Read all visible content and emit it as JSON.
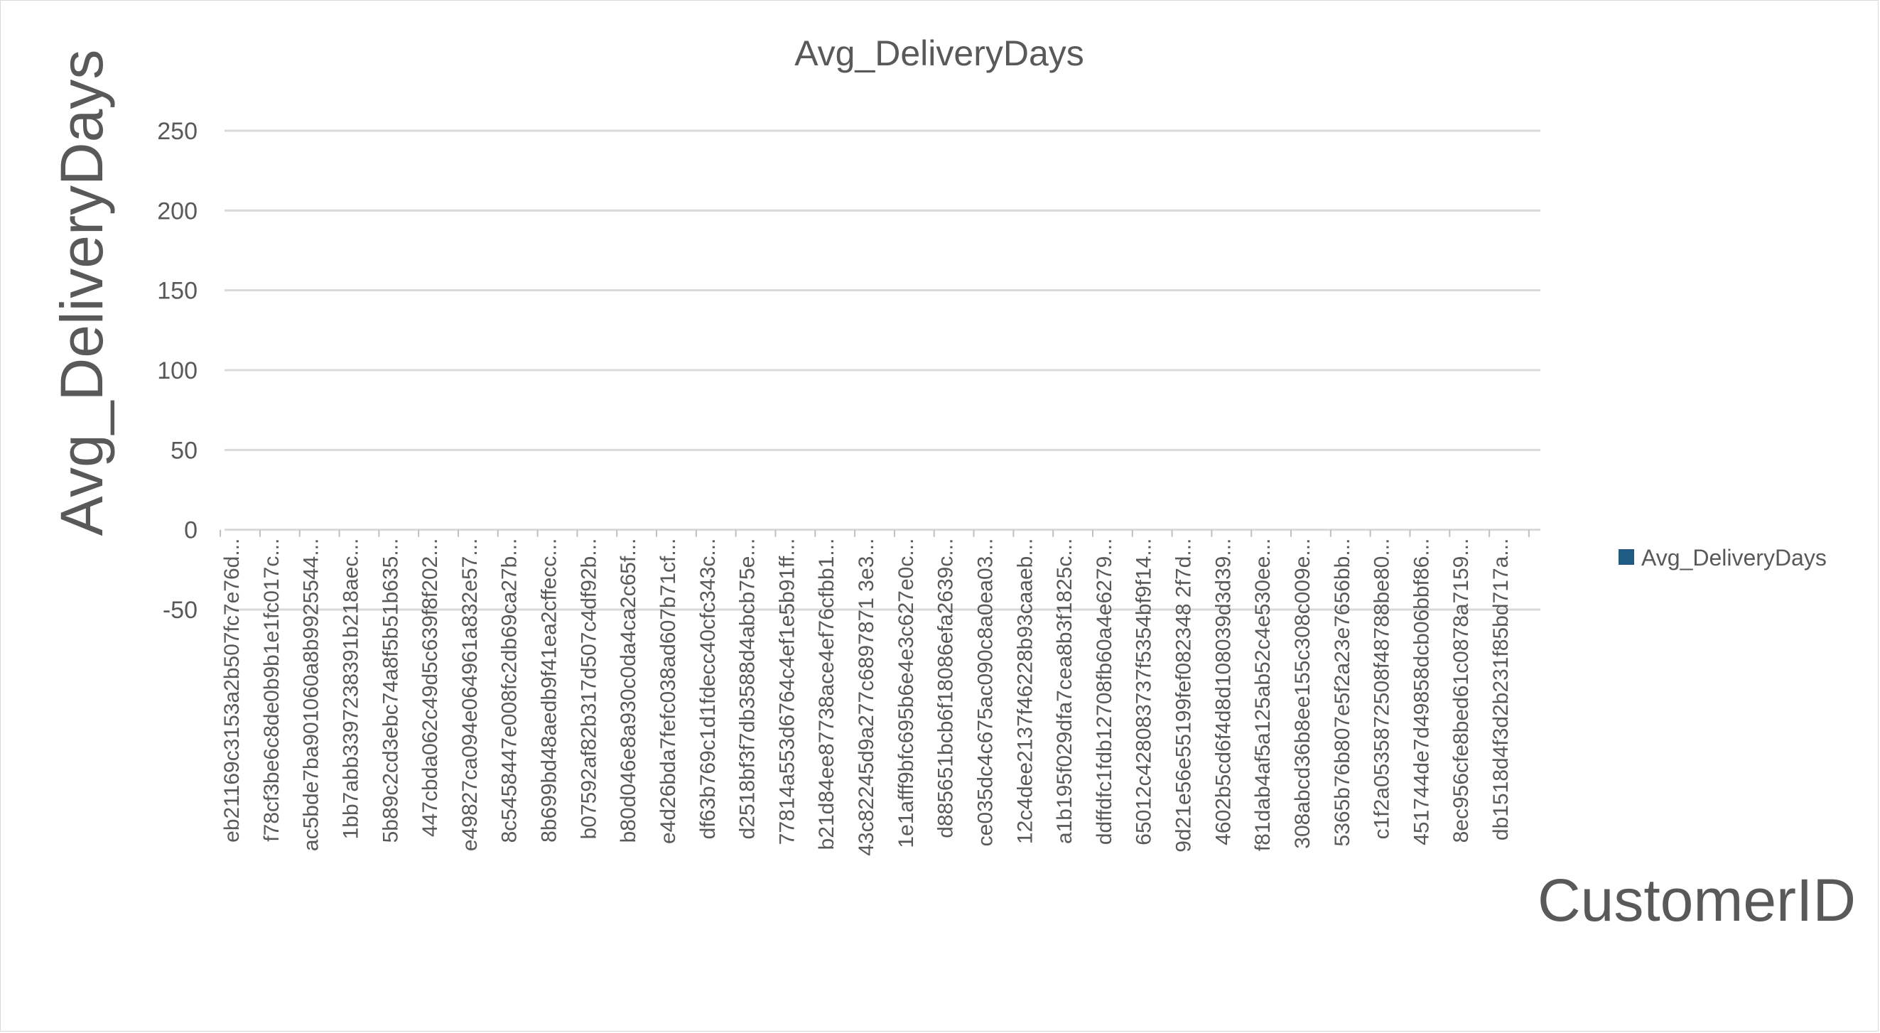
{
  "chart_data": {
    "type": "bar",
    "title": "Avg_DeliveryDays",
    "xlabel": "CustomerID",
    "ylabel": "Avg_DeliveryDays",
    "ylim": [
      -50,
      250
    ],
    "y_ticks": [
      250,
      200,
      150,
      100,
      50,
      0,
      -50
    ],
    "grid": true,
    "legend_position": "right",
    "colors": {
      "series": "#1f5b82",
      "text": "#595959",
      "grid": "#d9d9d9"
    },
    "categories": [
      "eb21169c3153a2b507fc7e76d...",
      "f78cf3be6c8de0b9b1e1fc017c...",
      "ac5bde7ba901060a8b9925544...",
      "1bb7abb3397238391b218aec...",
      "5b89c2cd3ebc74a8f5b51b635...",
      "447cbda062c49d5c639f8f202...",
      "e49827ca094e064961a832e57...",
      "8c5458447e008fc2db69ca27b...",
      "8b699bd48aedb9f41ea2cffecc...",
      "b07592af82b317d507c4df92b...",
      "b80d046e8a930c0da4ca2c65f...",
      "e4d26bda7fefc038ad607b71cf...",
      "df63b769c1d1fdecc40cfc343c...",
      "d2518bf3f7db3588d4abcb75e...",
      "77814a553d6764c4ef1e5b91ff...",
      "b21d84ee87738ace4ef76cfbb1...",
      "43c82245d9a277c6897871 3e3...",
      "1e1afff9bfc695b6e4e3c627e0c...",
      "d885651bcb6f18086efa2639c...",
      "ce035dc4c675ac090c8a0ea03...",
      "12c4dee2137f46228b93caaeb...",
      "a1b195f029dfa7cea8b3f1825c...",
      "ddffdfc1fdb12708fb60a4e6279...",
      "65012c428083737f5354bf9f14...",
      "9d21e56e55199fef082348 2f7d...",
      "4602b5cd6f4d8d108039d3d39...",
      "f81dab4af5a125ab52c4e530ee...",
      "308abcd36b8ee155c308c009e...",
      "5365b76b807e5f2a23e7656bb...",
      "c1f2a0535872508f48788be80...",
      "451744de7d49858dcb06bbf86...",
      "8ec956cfe8bed61c0878a7159...",
      "db1518d4f3d2b231f85bd717a..."
    ],
    "series": [
      {
        "name": "Avg_DeliveryDays",
        "values": [
          0,
          0,
          0,
          0,
          0,
          0,
          0,
          0,
          0,
          0,
          0,
          0,
          0,
          0,
          0,
          0,
          0,
          0,
          0,
          0,
          0,
          0,
          0,
          0,
          0,
          0,
          0,
          0,
          0,
          0,
          0,
          0,
          0
        ]
      }
    ]
  }
}
